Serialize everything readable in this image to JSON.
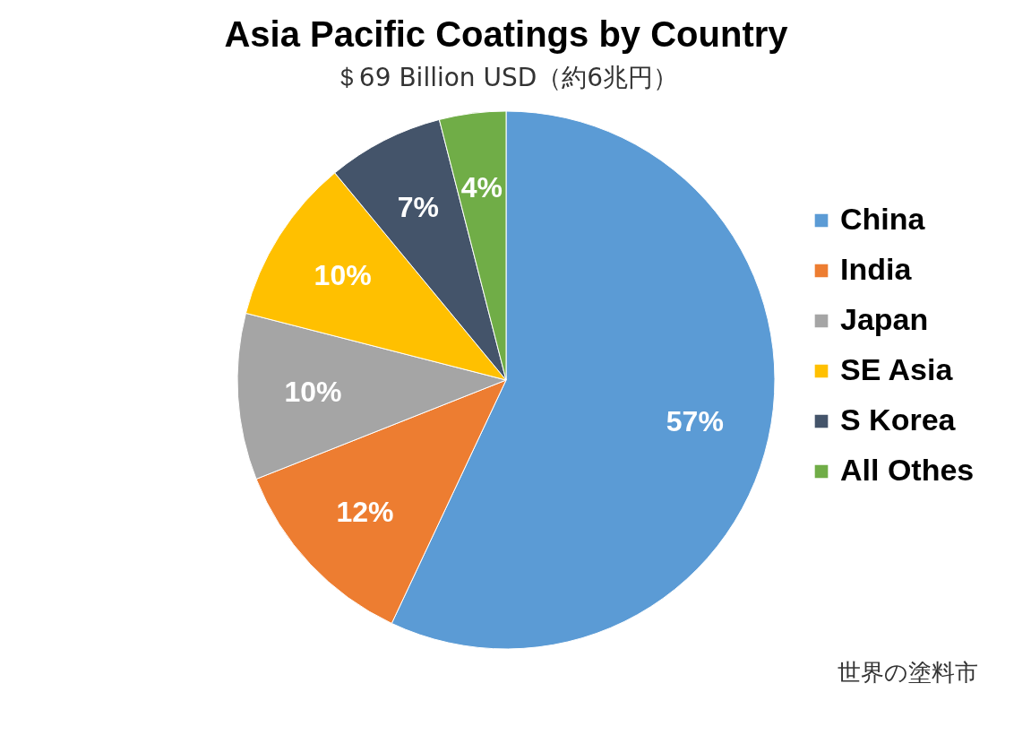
{
  "chart_data": {
    "type": "pie",
    "title": "Asia Pacific Coatings by Country",
    "subtitle": "＄69 Billion USD（約6兆円）",
    "categories": [
      "China",
      "India",
      "Japan",
      "SE Asia",
      "S Korea",
      "All Othes"
    ],
    "values": [
      57,
      12,
      10,
      10,
      7,
      4
    ],
    "colors": [
      "#5b9bd5",
      "#ed7d31",
      "#a5a5a5",
      "#ffc000",
      "#44546a",
      "#70ad47"
    ],
    "value_labels": [
      "57%",
      "12%",
      "10%",
      "10%",
      "7%",
      "4%"
    ],
    "legend": "right",
    "annotations": [
      "世界の塗料市"
    ]
  }
}
